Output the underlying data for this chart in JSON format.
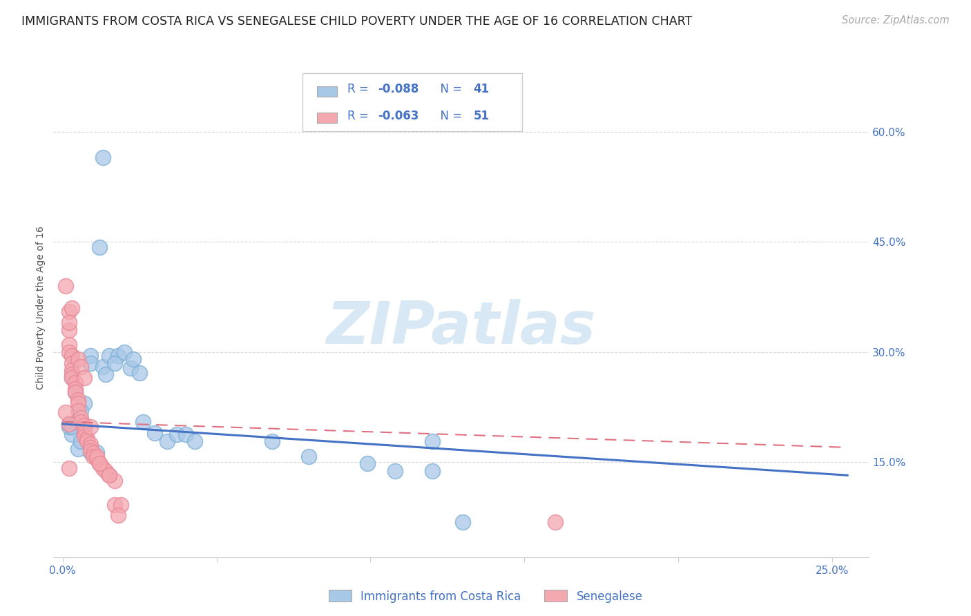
{
  "title": "IMMIGRANTS FROM COSTA RICA VS SENEGALESE CHILD POVERTY UNDER THE AGE OF 16 CORRELATION CHART",
  "source": "Source: ZipAtlas.com",
  "ylabel": "Child Poverty Under the Age of 16",
  "x_ticks": [
    0.0,
    0.05,
    0.1,
    0.15,
    0.2,
    0.25
  ],
  "x_tick_labels": [
    "0.0%",
    "",
    "",
    "",
    "",
    "25.0%"
  ],
  "y_ticks_right": [
    0.15,
    0.3,
    0.45,
    0.6
  ],
  "y_tick_labels_right": [
    "15.0%",
    "30.0%",
    "45.0%",
    "60.0%"
  ],
  "xlim": [
    -0.003,
    0.262
  ],
  "ylim": [
    0.02,
    0.7
  ],
  "legend_R1": "R = ",
  "legend_V1": "-0.088",
  "legend_N1_label": "N = ",
  "legend_N1": "41",
  "legend_R2": "R = ",
  "legend_V2": "-0.063",
  "legend_N2_label": "N = ",
  "legend_N2": "51",
  "blue_color": "#a8c8e8",
  "pink_color": "#f4a8b0",
  "blue_fill": "#a8c8e8",
  "pink_fill": "#f4a8b0",
  "blue_scatter_edge": "#7aafd4",
  "pink_scatter_edge": "#e88898",
  "blue_line_color": "#4472c4",
  "pink_line_color": "#e07080",
  "text_blue": "#4472c4",
  "watermark_color": "#d8e8f4",
  "blue_scatter_x": [
    0.005,
    0.013,
    0.003,
    0.003,
    0.004,
    0.007,
    0.006,
    0.009,
    0.009,
    0.013,
    0.014,
    0.015,
    0.018,
    0.017,
    0.02,
    0.022,
    0.025,
    0.023,
    0.026,
    0.03,
    0.034,
    0.037,
    0.04,
    0.043,
    0.003,
    0.002,
    0.002,
    0.003,
    0.005,
    0.006,
    0.007,
    0.009,
    0.011,
    0.012,
    0.068,
    0.08,
    0.099,
    0.108,
    0.12,
    0.13,
    0.12
  ],
  "blue_scatter_y": [
    0.205,
    0.565,
    0.295,
    0.265,
    0.245,
    0.23,
    0.22,
    0.295,
    0.285,
    0.28,
    0.27,
    0.295,
    0.295,
    0.285,
    0.3,
    0.278,
    0.272,
    0.29,
    0.205,
    0.19,
    0.178,
    0.188,
    0.188,
    0.178,
    0.188,
    0.198,
    0.202,
    0.198,
    0.168,
    0.178,
    0.198,
    0.163,
    0.163,
    0.443,
    0.178,
    0.158,
    0.148,
    0.138,
    0.178,
    0.068,
    0.138
  ],
  "pink_scatter_x": [
    0.001,
    0.002,
    0.002,
    0.002,
    0.002,
    0.003,
    0.003,
    0.003,
    0.003,
    0.003,
    0.004,
    0.004,
    0.004,
    0.005,
    0.005,
    0.005,
    0.006,
    0.006,
    0.007,
    0.007,
    0.007,
    0.007,
    0.008,
    0.008,
    0.009,
    0.009,
    0.009,
    0.01,
    0.01,
    0.011,
    0.012,
    0.013,
    0.014,
    0.015,
    0.017,
    0.003,
    0.002,
    0.005,
    0.006,
    0.007,
    0.009,
    0.011,
    0.012,
    0.001,
    0.002,
    0.002,
    0.015,
    0.017,
    0.019,
    0.018,
    0.16
  ],
  "pink_scatter_y": [
    0.39,
    0.355,
    0.33,
    0.31,
    0.3,
    0.295,
    0.285,
    0.275,
    0.27,
    0.265,
    0.258,
    0.25,
    0.245,
    0.235,
    0.23,
    0.22,
    0.21,
    0.205,
    0.2,
    0.195,
    0.19,
    0.185,
    0.182,
    0.178,
    0.175,
    0.17,
    0.165,
    0.162,
    0.158,
    0.155,
    0.148,
    0.142,
    0.138,
    0.132,
    0.125,
    0.36,
    0.34,
    0.29,
    0.28,
    0.265,
    0.198,
    0.158,
    0.148,
    0.218,
    0.202,
    0.142,
    0.132,
    0.092,
    0.092,
    0.078,
    0.068
  ],
  "blue_trend_x": [
    0.0,
    0.255
  ],
  "blue_trend_y": [
    0.202,
    0.132
  ],
  "pink_trend_x": [
    0.0,
    0.255
  ],
  "pink_trend_y": [
    0.205,
    0.17
  ],
  "background_color": "#ffffff",
  "grid_color": "#d8d8d8",
  "axis_color": "#4472c4",
  "title_fontsize": 12.5,
  "source_fontsize": 10.5,
  "label_fontsize": 10,
  "tick_fontsize": 11,
  "legend_fontsize": 12
}
